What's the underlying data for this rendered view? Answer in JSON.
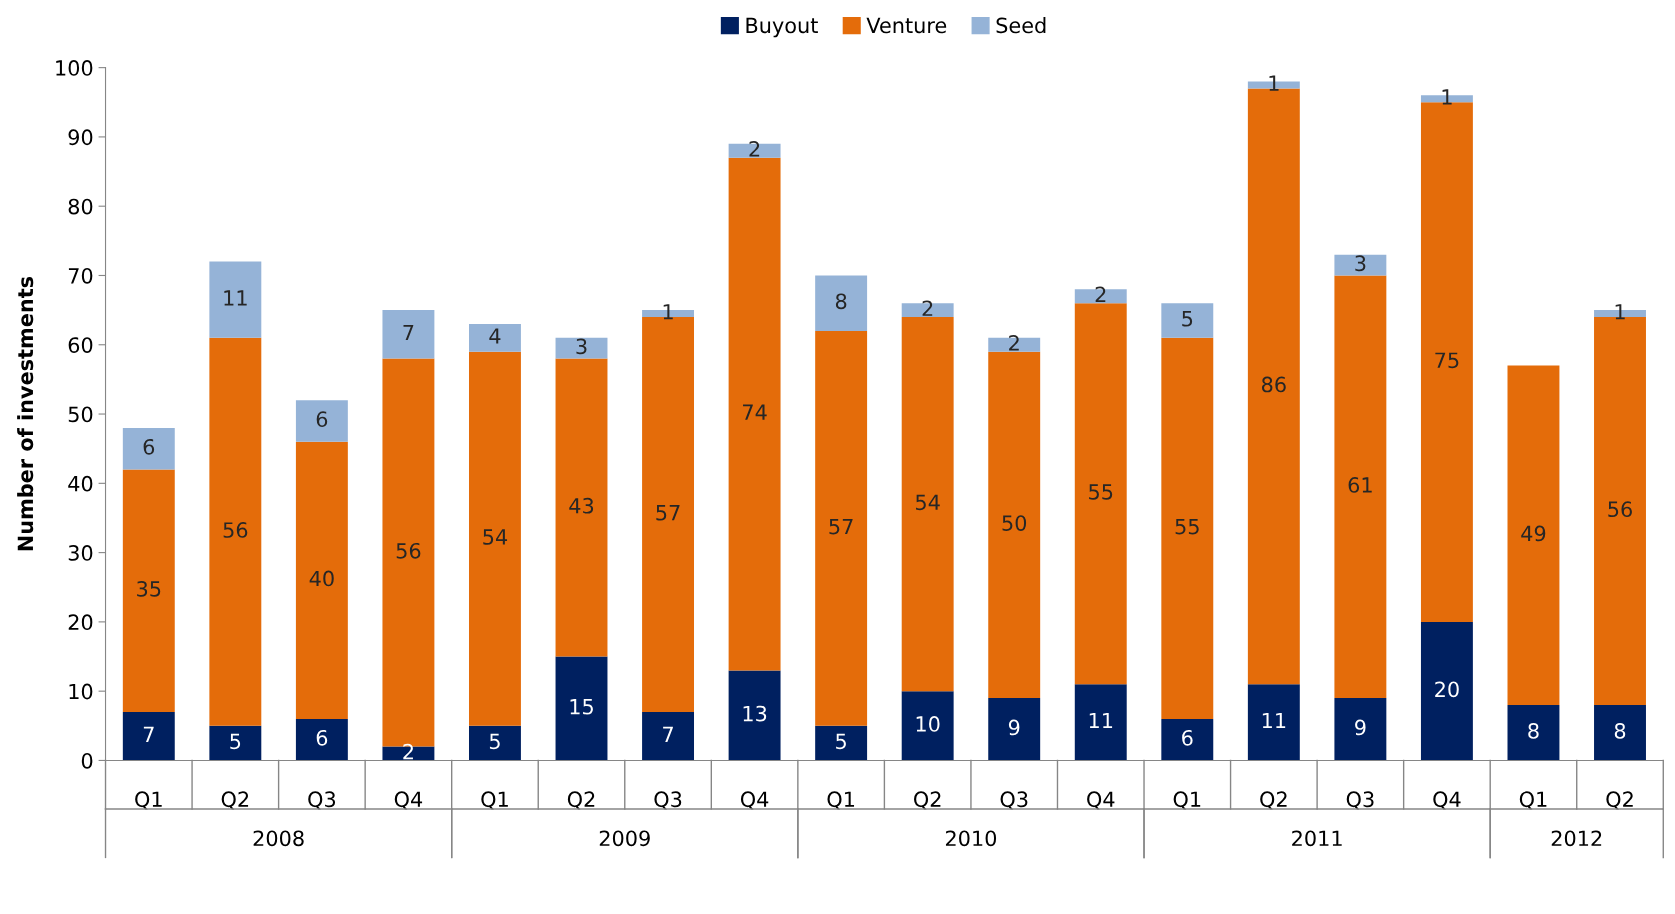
{
  "chart_data": {
    "type": "bar",
    "stacked": true,
    "ylabel": "Number of investments",
    "categories": [
      "Q1",
      "Q2",
      "Q3",
      "Q4",
      "Q1",
      "Q2",
      "Q3",
      "Q4",
      "Q1",
      "Q2",
      "Q3",
      "Q4",
      "Q1",
      "Q2",
      "Q3",
      "Q4",
      "Q1",
      "Q2"
    ],
    "series": [
      {
        "name": "Buyout",
        "color": "#002060",
        "values": [
          7,
          5,
          6,
          2,
          5,
          15,
          7,
          13,
          5,
          10,
          9,
          11,
          6,
          11,
          9,
          20,
          8,
          8
        ]
      },
      {
        "name": "Venture",
        "color": "#e46c0a",
        "values": [
          35,
          56,
          40,
          56,
          54,
          43,
          57,
          74,
          57,
          54,
          50,
          55,
          55,
          86,
          61,
          75,
          49,
          56
        ]
      },
      {
        "name": "Seed",
        "color": "#95b3d7",
        "values": [
          6,
          11,
          6,
          7,
          4,
          3,
          1,
          2,
          8,
          2,
          2,
          2,
          5,
          1,
          3,
          1,
          null,
          1
        ]
      }
    ],
    "annotations": [
      "2008",
      "2009",
      "2010",
      "2011",
      "2012"
    ],
    "ylim": [
      0,
      100
    ],
    "yticks": [
      0,
      10,
      20,
      30,
      40,
      50,
      60,
      70,
      80,
      90,
      100
    ],
    "data_labels": true,
    "legend": "top",
    "grid": false
  }
}
